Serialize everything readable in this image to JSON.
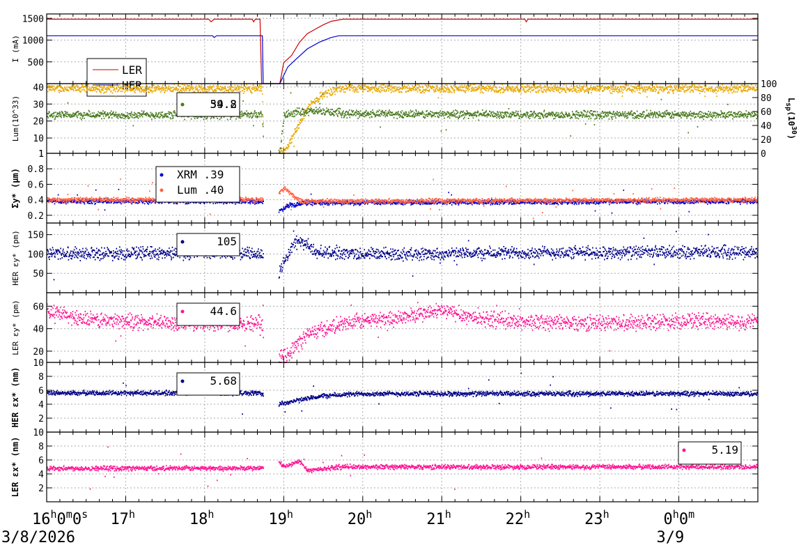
{
  "chart_data": {
    "type": "scatter",
    "x_axis": {
      "ticks": [
        {
          "hour": 16,
          "label": "16h0m0s"
        },
        {
          "hour": 17,
          "label": "17h"
        },
        {
          "hour": 18,
          "label": "18h"
        },
        {
          "hour": 19,
          "label": "19h"
        },
        {
          "hour": 20,
          "label": "20h"
        },
        {
          "hour": 21,
          "label": "21h"
        },
        {
          "hour": 22,
          "label": "22h"
        },
        {
          "hour": 23,
          "label": "23h"
        },
        {
          "hour": 24,
          "label": "0h0m"
        }
      ],
      "range": [
        16,
        25
      ],
      "dates": [
        {
          "hour": 16,
          "label": "3/8/2026"
        },
        {
          "hour": 24,
          "label": "3/9"
        }
      ]
    },
    "panels": [
      {
        "id": "current",
        "ylabel": "I (mA)",
        "ylim": [
          0,
          1600
        ],
        "yticks": [
          500,
          1000,
          1500
        ],
        "series": [
          {
            "name": "LER",
            "color": "#cc0000",
            "style": "line",
            "points": [
              [
                16,
                1480
              ],
              [
                18.05,
                1480
              ],
              [
                18.08,
                1420
              ],
              [
                18.12,
                1480
              ],
              [
                18.6,
                1480
              ],
              [
                18.62,
                1420
              ],
              [
                18.64,
                1480
              ],
              [
                18.7,
                1480
              ],
              [
                18.72,
                0
              ],
              [
                18.95,
                0
              ],
              [
                19.0,
                480
              ],
              [
                19.1,
                650
              ],
              [
                19.2,
                950
              ],
              [
                19.3,
                1150
              ],
              [
                19.4,
                1250
              ],
              [
                19.5,
                1350
              ],
              [
                19.6,
                1430
              ],
              [
                19.75,
                1480
              ],
              [
                22.05,
                1480
              ],
              [
                22.07,
                1420
              ],
              [
                22.09,
                1480
              ],
              [
                25,
                1480
              ]
            ]
          },
          {
            "name": "HER",
            "color": "#0000cc",
            "style": "line",
            "points": [
              [
                16,
                1100
              ],
              [
                18.1,
                1100
              ],
              [
                18.12,
                1060
              ],
              [
                18.15,
                1100
              ],
              [
                18.73,
                1100
              ],
              [
                18.74,
                0
              ],
              [
                18.95,
                0
              ],
              [
                19.05,
                380
              ],
              [
                19.15,
                550
              ],
              [
                19.3,
                800
              ],
              [
                19.45,
                950
              ],
              [
                19.6,
                1060
              ],
              [
                19.7,
                1100
              ],
              [
                25,
                1100
              ]
            ]
          }
        ],
        "legend": [
          {
            "label": "LER",
            "color": "#cc0000"
          },
          {
            "label": "HER",
            "color": "#0000cc"
          }
        ]
      },
      {
        "id": "luminosity",
        "ylabel": "Lum(10^33)",
        "ylim": [
          1,
          42
        ],
        "yticks": [
          1,
          10,
          20,
          30,
          40
        ],
        "y2label": "Lsp(10^30)",
        "y2lim": [
          0,
          100
        ],
        "y2ticks": [
          0,
          20,
          40,
          60,
          80,
          100
        ],
        "series": [
          {
            "name": "Lum",
            "color": "#e8a800",
            "style": "points",
            "base": 39,
            "points": [
              [
                16,
                39
              ],
              [
                18.72,
                39
              ],
              [
                18.75,
                1
              ],
              [
                18.95,
                1
              ],
              [
                19.05,
                5
              ],
              [
                19.15,
                15
              ],
              [
                19.3,
                28
              ],
              [
                19.5,
                36
              ],
              [
                19.7,
                39
              ],
              [
                25,
                39
              ]
            ]
          },
          {
            "name": "Lsp",
            "color": "#4a7a20",
            "style": "points",
            "axis": "right",
            "points": [
              [
                16,
                55
              ],
              [
                18.72,
                55
              ],
              [
                18.75,
                1
              ],
              [
                18.95,
                5
              ],
              [
                19.0,
                55
              ],
              [
                19.2,
                60
              ],
              [
                19.5,
                60
              ],
              [
                19.8,
                57
              ],
              [
                20.5,
                56
              ],
              [
                25,
                55
              ]
            ]
          }
        ],
        "legend": [
          {
            "label": "39.2",
            "color": "#e8a800"
          },
          {
            "label": "54.8",
            "color": "#4a7a20"
          }
        ]
      },
      {
        "id": "sigma_y",
        "ylabel": "Σy* (μm)",
        "ylim": [
          0.1,
          1.0
        ],
        "yticks": [
          0.2,
          0.4,
          0.6,
          0.8,
          1
        ],
        "series": [
          {
            "name": "XRM",
            "color": "#0000cc",
            "style": "points",
            "points": [
              [
                16,
                0.38
              ],
              [
                18.7,
                0.38
              ],
              [
                18.93,
                0.25
              ],
              [
                19.05,
                0.33
              ],
              [
                19.3,
                0.36
              ],
              [
                25,
                0.38
              ]
            ]
          },
          {
            "name": "Lum",
            "color": "#ff6040",
            "style": "points",
            "points": [
              [
                16,
                0.4
              ],
              [
                18.7,
                0.4
              ],
              [
                18.9,
                0.45
              ],
              [
                19.0,
                0.55
              ],
              [
                19.2,
                0.38
              ],
              [
                25,
                0.4
              ]
            ]
          }
        ],
        "legend": [
          {
            "label": "XRM  .39",
            "color": "#0000cc"
          },
          {
            "label": "Lum  .40",
            "color": "#ff6040"
          }
        ]
      },
      {
        "id": "her_emit_y",
        "ylabel": "HER εy* (pm)",
        "ylim": [
          0,
          180
        ],
        "yticks": [
          50,
          100,
          150
        ],
        "series": [
          {
            "name": "HER εy*",
            "color": "#000088",
            "style": "points",
            "points": [
              [
                16,
                102
              ],
              [
                18.7,
                102
              ],
              [
                18.92,
                40
              ],
              [
                19.0,
                80
              ],
              [
                19.1,
                120
              ],
              [
                19.2,
                135
              ],
              [
                19.4,
                105
              ],
              [
                20.0,
                100
              ],
              [
                21.0,
                100
              ],
              [
                22.0,
                103
              ],
              [
                25,
                105
              ]
            ]
          }
        ],
        "legend": [
          {
            "label": "105",
            "color": "#000088"
          }
        ]
      },
      {
        "id": "ler_emit_y",
        "ylabel": "LER εy* (pm)",
        "ylim": [
          10,
          72
        ],
        "yticks": [
          10,
          20,
          40,
          60
        ],
        "series": [
          {
            "name": "LER εy*",
            "color": "#ff1493",
            "style": "points",
            "points": [
              [
                16,
                55
              ],
              [
                16.5,
                48
              ],
              [
                17.5,
                45
              ],
              [
                18.7,
                45
              ],
              [
                18.92,
                12
              ],
              [
                19.05,
                18
              ],
              [
                19.3,
                35
              ],
              [
                19.6,
                42
              ],
              [
                20.0,
                47
              ],
              [
                20.5,
                50
              ],
              [
                21.0,
                56
              ],
              [
                21.4,
                50
              ],
              [
                22.0,
                46
              ],
              [
                23.0,
                45
              ],
              [
                24.0,
                47
              ],
              [
                25,
                46
              ]
            ]
          }
        ],
        "legend": [
          {
            "label": "44.6",
            "color": "#ff1493"
          }
        ]
      },
      {
        "id": "her_emit_x",
        "ylabel": "HER εx* (nm)",
        "ylim": [
          0,
          10
        ],
        "yticks": [
          2,
          4,
          6,
          8
        ],
        "series": [
          {
            "name": "HER εx*",
            "color": "#000088",
            "style": "points",
            "points": [
              [
                16,
                5.6
              ],
              [
                18.7,
                5.6
              ],
              [
                18.92,
                4.0
              ],
              [
                19.2,
                4.6
              ],
              [
                19.5,
                5.2
              ],
              [
                20.0,
                5.5
              ],
              [
                25,
                5.5
              ]
            ]
          }
        ],
        "legend": [
          {
            "label": "5.68",
            "color": "#000088"
          }
        ]
      },
      {
        "id": "ler_emit_x",
        "ylabel": "LER εx* (nm)",
        "ylim": [
          0,
          10
        ],
        "yticks": [
          2,
          4,
          6,
          8,
          10
        ],
        "series": [
          {
            "name": "LER εx*",
            "color": "#ff1493",
            "style": "points",
            "points": [
              [
                16,
                4.8
              ],
              [
                18.7,
                4.8
              ],
              [
                18.9,
                6.0
              ],
              [
                19.0,
                5.0
              ],
              [
                19.2,
                5.8
              ],
              [
                19.3,
                4.5
              ],
              [
                19.7,
                5.0
              ],
              [
                25,
                5.0
              ]
            ]
          }
        ],
        "legend": [
          {
            "label": "5.19",
            "color": "#ff1493"
          }
        ]
      }
    ]
  }
}
